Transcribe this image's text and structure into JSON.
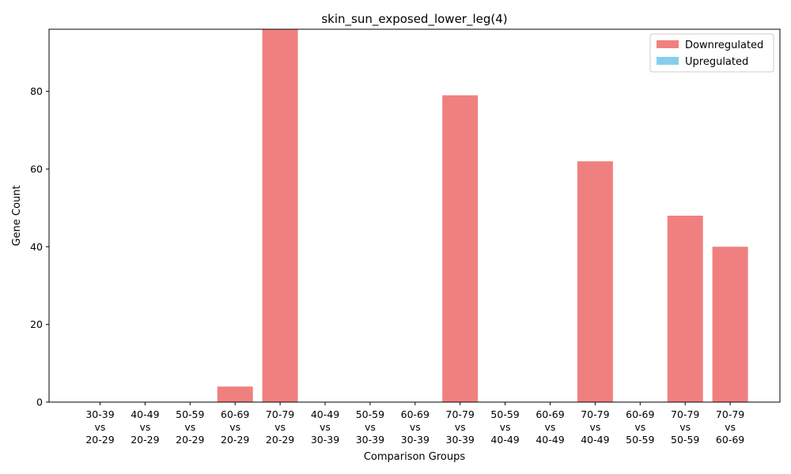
{
  "chart_data": {
    "type": "bar",
    "title": "skin_sun_exposed_lower_leg(4)",
    "xlabel": "Comparison Groups",
    "ylabel": "Gene Count",
    "categories": [
      [
        "30-39",
        "vs",
        "20-29"
      ],
      [
        "40-49",
        "vs",
        "20-29"
      ],
      [
        "50-59",
        "vs",
        "20-29"
      ],
      [
        "60-69",
        "vs",
        "20-29"
      ],
      [
        "70-79",
        "vs",
        "20-29"
      ],
      [
        "40-49",
        "vs",
        "30-39"
      ],
      [
        "50-59",
        "vs",
        "30-39"
      ],
      [
        "60-69",
        "vs",
        "30-39"
      ],
      [
        "70-79",
        "vs",
        "30-39"
      ],
      [
        "50-59",
        "vs",
        "40-49"
      ],
      [
        "60-69",
        "vs",
        "40-49"
      ],
      [
        "70-79",
        "vs",
        "40-49"
      ],
      [
        "60-69",
        "vs",
        "50-59"
      ],
      [
        "70-79",
        "vs",
        "50-59"
      ],
      [
        "70-79",
        "vs",
        "60-69"
      ]
    ],
    "series": [
      {
        "name": "Downregulated",
        "color": "#f08080",
        "values": [
          0,
          0,
          0,
          4,
          96,
          0,
          0,
          0,
          79,
          0,
          0,
          62,
          0,
          48,
          40
        ]
      },
      {
        "name": "Upregulated",
        "color": "#87ceeb",
        "values": [
          0,
          0,
          0,
          0,
          0,
          0,
          0,
          0,
          0,
          0,
          0,
          0,
          0,
          0,
          0
        ]
      }
    ],
    "ylim": [
      0,
      96
    ],
    "yticks": [
      0,
      20,
      40,
      60,
      80
    ],
    "grid": false,
    "legend_position": "top-right"
  }
}
